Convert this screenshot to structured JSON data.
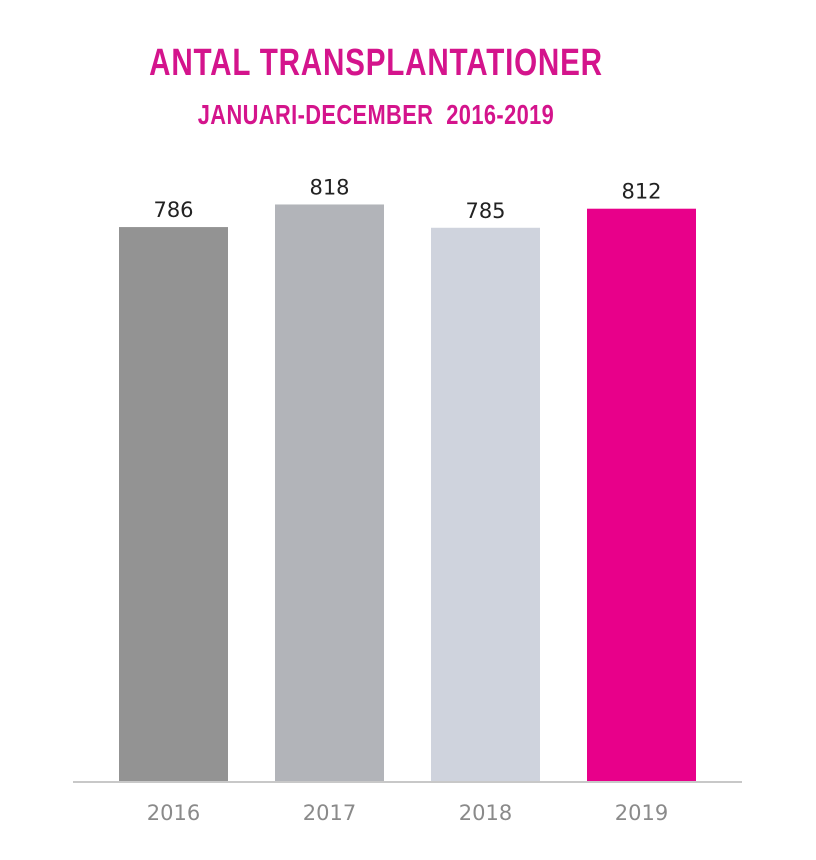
{
  "chart_data": {
    "type": "bar",
    "title": "ANTAL TRANSPLANTATIONER",
    "subtitle": "JANUARI-DECEMBER  2016-2019",
    "categories": [
      "2016",
      "2017",
      "2018",
      "2019"
    ],
    "values": [
      786,
      818,
      785,
      812
    ],
    "value_labels": [
      "786",
      "818",
      "785",
      "812"
    ],
    "bar_colors": [
      "#939393",
      "#b2b4b9",
      "#cfd3dd",
      "#e8008a"
    ],
    "ylim": [
      0,
      830
    ],
    "grid": false,
    "legend": "none",
    "xlabel": "",
    "ylabel": ""
  },
  "colors": {
    "accent": "#d4148c",
    "axis": "#c8c8c8"
  }
}
